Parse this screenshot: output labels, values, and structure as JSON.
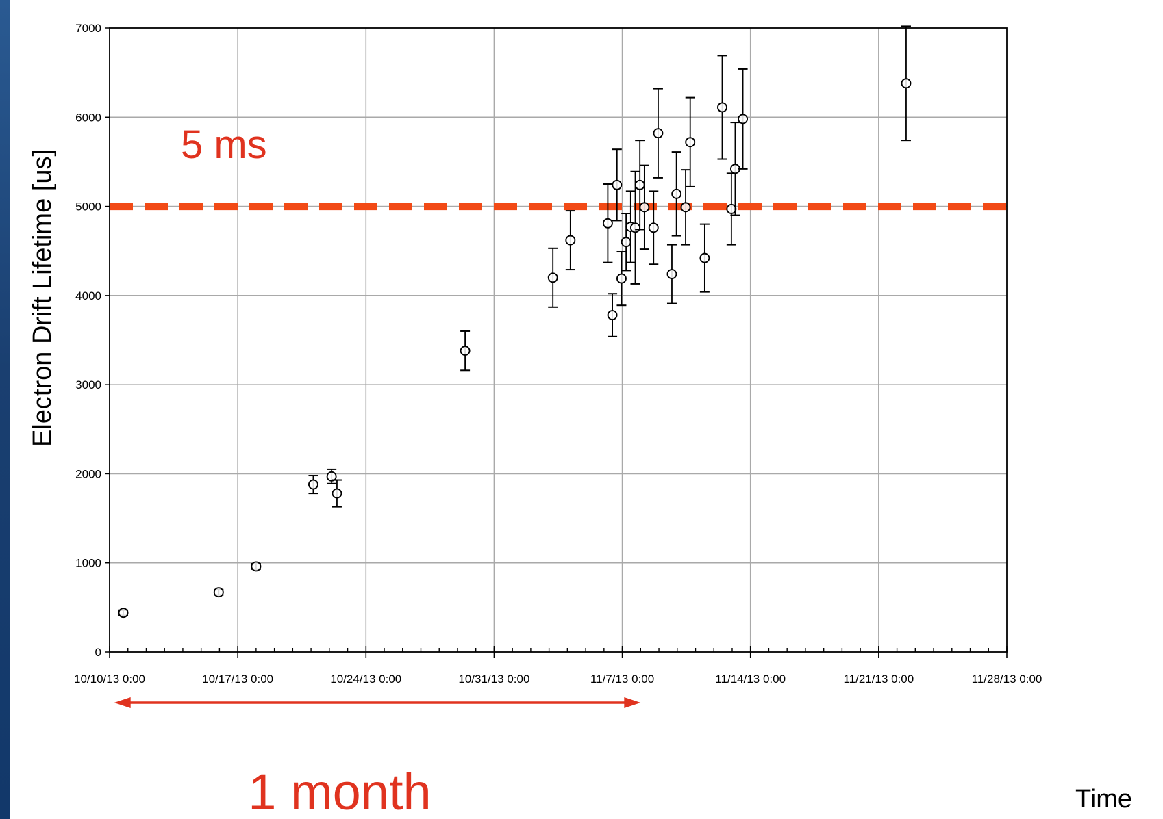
{
  "chart_data": {
    "type": "scatter",
    "title": "",
    "xlabel": "Time",
    "ylabel": "Electron Drift Lifetime [us]",
    "x_axis": {
      "kind": "date",
      "range": [
        "2013-10-10T00:00",
        "2013-11-28T00:00"
      ],
      "tick_labels": [
        "10/10/13 0:00",
        "10/17/13 0:00",
        "10/24/13 0:00",
        "10/31/13 0:00",
        "11/7/13 0:00",
        "11/14/13 0:00",
        "11/21/13 0:00",
        "11/28/13 0:00"
      ],
      "tick_values": [
        "2013-10-10T00:00",
        "2013-10-17T00:00",
        "2013-10-24T00:00",
        "2013-10-31T00:00",
        "2013-11-07T00:00",
        "2013-11-14T00:00",
        "2013-11-21T00:00",
        "2013-11-28T00:00"
      ],
      "minor_tick_interval_days": 1
    },
    "y_axis": {
      "range": [
        0,
        7000
      ],
      "tick_labels": [
        "0",
        "1000",
        "2000",
        "3000",
        "4000",
        "5000",
        "6000",
        "7000"
      ],
      "tick_values": [
        0,
        1000,
        2000,
        3000,
        4000,
        5000,
        6000,
        7000
      ]
    },
    "grid": true,
    "legend": "none",
    "marker_color": "#000000",
    "series": [
      {
        "points": [
          {
            "x": "2013-10-10T18:00",
            "y": 440,
            "err": 30
          },
          {
            "x": "2013-10-15T23:00",
            "y": 670,
            "err": 30
          },
          {
            "x": "2013-10-18T00:00",
            "y": 960,
            "err": 30
          },
          {
            "x": "2013-10-21T03:00",
            "y": 1880,
            "err": 100
          },
          {
            "x": "2013-10-22T03:00",
            "y": 1970,
            "err": 80
          },
          {
            "x": "2013-10-22T10:00",
            "y": 1780,
            "err": 150
          },
          {
            "x": "2013-10-29T10:00",
            "y": 3380,
            "err": 220
          },
          {
            "x": "2013-11-03T05:00",
            "y": 4200,
            "err": 330
          },
          {
            "x": "2013-11-04T04:00",
            "y": 4620,
            "err": 330
          },
          {
            "x": "2013-11-06T05:00",
            "y": 4810,
            "err": 440
          },
          {
            "x": "2013-11-06T11:00",
            "y": 3780,
            "err": 240
          },
          {
            "x": "2013-11-06T17:00",
            "y": 5240,
            "err": 400
          },
          {
            "x": "2013-11-06T23:00",
            "y": 4190,
            "err": 300
          },
          {
            "x": "2013-11-07T05:00",
            "y": 4600,
            "err": 320
          },
          {
            "x": "2013-11-07T11:00",
            "y": 4770,
            "err": 400
          },
          {
            "x": "2013-11-07T17:00",
            "y": 4760,
            "err": 630
          },
          {
            "x": "2013-11-07T23:00",
            "y": 5240,
            "err": 500
          },
          {
            "x": "2013-11-08T05:00",
            "y": 4990,
            "err": 470
          },
          {
            "x": "2013-11-08T17:00",
            "y": 4760,
            "err": 410
          },
          {
            "x": "2013-11-08T23:00",
            "y": 5820,
            "err": 500
          },
          {
            "x": "2013-11-09T17:00",
            "y": 4240,
            "err": 330
          },
          {
            "x": "2013-11-09T23:00",
            "y": 5140,
            "err": 470
          },
          {
            "x": "2013-11-10T11:00",
            "y": 4990,
            "err": 420
          },
          {
            "x": "2013-11-10T17:00",
            "y": 5720,
            "err": 500
          },
          {
            "x": "2013-11-11T12:00",
            "y": 4420,
            "err": 380
          },
          {
            "x": "2013-11-12T11:00",
            "y": 6110,
            "err": 580
          },
          {
            "x": "2013-11-12T23:00",
            "y": 4970,
            "err": 400
          },
          {
            "x": "2013-11-13T04:00",
            "y": 5420,
            "err": 520
          },
          {
            "x": "2013-11-13T14:00",
            "y": 5980,
            "err": 560
          },
          {
            "x": "2013-11-22T12:00",
            "y": 6380,
            "err": 640
          }
        ]
      }
    ],
    "reference_line": {
      "y": 5000,
      "style": "dashed",
      "color": "#f24a16",
      "label": "5 ms"
    },
    "span_annotation": {
      "label": "1 month",
      "from": "2013-10-10T06:00",
      "to": "2013-11-08T00:00",
      "color": "#e0331f"
    }
  }
}
